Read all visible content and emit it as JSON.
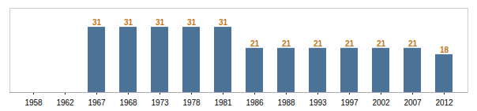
{
  "chart_data": {
    "type": "bar",
    "categories": [
      "1958",
      "1962",
      "1967",
      "1968",
      "1973",
      "1978",
      "1981",
      "1986",
      "1988",
      "1993",
      "1997",
      "2002",
      "2007",
      "2012"
    ],
    "values": [
      0,
      0,
      31,
      31,
      31,
      31,
      31,
      21,
      21,
      21,
      21,
      21,
      21,
      18
    ],
    "color": "#4d7298",
    "ylim": [
      0,
      40
    ],
    "yticks": [],
    "grid": false,
    "tick_labels": "x",
    "data_labels": true
  }
}
